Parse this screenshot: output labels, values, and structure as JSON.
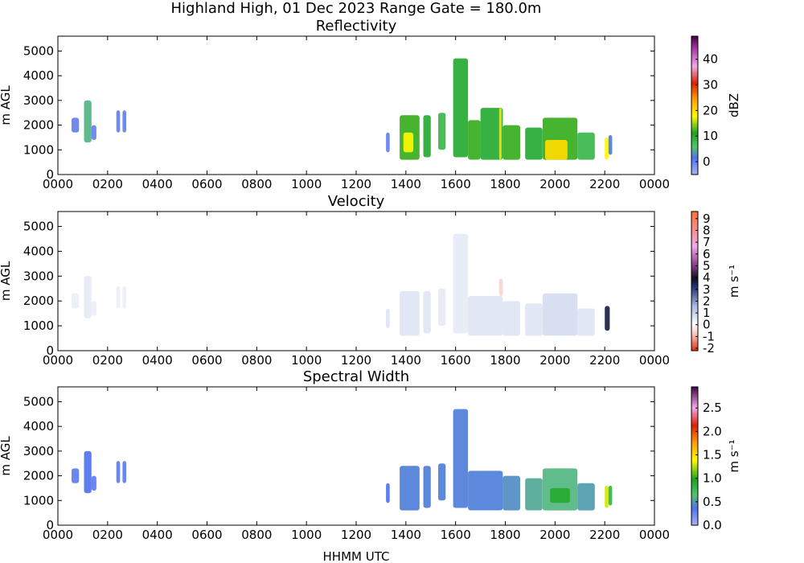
{
  "figure": {
    "title": "Highland High, 01 Dec 2023 Range Gate = 180.0m",
    "xlabel": "HHMM UTC"
  },
  "chart_data": [
    {
      "type": "heatmap",
      "title": "Reflectivity",
      "ylabel": "m AGL",
      "xlim": [
        0,
        24
      ],
      "ylim": [
        0,
        5600
      ],
      "x_ticks": [
        "0000",
        "0200",
        "0400",
        "0600",
        "0800",
        "1000",
        "1200",
        "1400",
        "1600",
        "1800",
        "2000",
        "2200",
        "0000"
      ],
      "y_ticks": [
        0,
        1000,
        2000,
        3000,
        4000,
        5000
      ],
      "colorbar": {
        "label": "dBZ",
        "range": [
          -5,
          49
        ],
        "ticks": [
          "0",
          "10",
          "20",
          "30",
          "40"
        ]
      },
      "cells": [
        {
          "t0": 0.55,
          "t1": 0.85,
          "h0": 1700,
          "h1": 2300,
          "v": 0
        },
        {
          "t0": 1.05,
          "t1": 1.35,
          "h0": 1300,
          "h1": 3000,
          "v": 5
        },
        {
          "t0": 1.35,
          "t1": 1.55,
          "h0": 1400,
          "h1": 2000,
          "v": 0
        },
        {
          "t0": 2.35,
          "t1": 2.5,
          "h0": 1700,
          "h1": 2600,
          "v": 0
        },
        {
          "t0": 2.6,
          "t1": 2.75,
          "h0": 1700,
          "h1": 2600,
          "v": 0
        },
        {
          "t0": 13.2,
          "t1": 13.35,
          "h0": 900,
          "h1": 1700,
          "v": 0
        },
        {
          "t0": 13.75,
          "t1": 14.55,
          "h0": 600,
          "h1": 2400,
          "v": 12
        },
        {
          "t0": 13.9,
          "t1": 14.3,
          "h0": 900,
          "h1": 1700,
          "v": 18
        },
        {
          "t0": 14.7,
          "t1": 15.0,
          "h0": 700,
          "h1": 2400,
          "v": 10
        },
        {
          "t0": 15.3,
          "t1": 15.6,
          "h0": 1000,
          "h1": 2500,
          "v": 8
        },
        {
          "t0": 15.9,
          "t1": 16.5,
          "h0": 700,
          "h1": 4700,
          "v": 10
        },
        {
          "t0": 16.5,
          "t1": 17.0,
          "h0": 600,
          "h1": 2200,
          "v": 12
        },
        {
          "t0": 17.0,
          "t1": 17.9,
          "h0": 600,
          "h1": 2700,
          "v": 10
        },
        {
          "t0": 17.75,
          "t1": 17.85,
          "h0": 600,
          "h1": 2700,
          "v": 20
        },
        {
          "t0": 17.9,
          "t1": 18.6,
          "h0": 600,
          "h1": 2000,
          "v": 12
        },
        {
          "t0": 18.8,
          "t1": 19.5,
          "h0": 600,
          "h1": 1900,
          "v": 10
        },
        {
          "t0": 19.5,
          "t1": 20.9,
          "h0": 600,
          "h1": 2300,
          "v": 12
        },
        {
          "t0": 19.6,
          "t1": 20.5,
          "h0": 600,
          "h1": 1400,
          "v": 20
        },
        {
          "t0": 20.9,
          "t1": 21.6,
          "h0": 600,
          "h1": 1700,
          "v": 8
        },
        {
          "t0": 22.0,
          "t1": 22.15,
          "h0": 600,
          "h1": 1500,
          "v": 18
        },
        {
          "t0": 22.15,
          "t1": 22.3,
          "h0": 800,
          "h1": 1600,
          "v": 2
        }
      ]
    },
    {
      "type": "heatmap",
      "title": "Velocity",
      "ylabel": "m AGL",
      "xlim": [
        0,
        24
      ],
      "ylim": [
        0,
        5600
      ],
      "x_ticks": [
        "0000",
        "0200",
        "0400",
        "0600",
        "0800",
        "1000",
        "1200",
        "1400",
        "1600",
        "1800",
        "2000",
        "2200",
        "0000"
      ],
      "y_ticks": [
        0,
        1000,
        2000,
        3000,
        4000,
        5000
      ],
      "colorbar": {
        "label": "m s⁻¹",
        "range": [
          -2.2,
          9.6
        ],
        "ticks": [
          "-2",
          "-1",
          "0",
          "1",
          "2",
          "3",
          "4",
          "5",
          "6",
          "7",
          "8",
          "9"
        ]
      },
      "cells": [
        {
          "t0": 0.55,
          "t1": 0.85,
          "h0": 1700,
          "h1": 2300,
          "v": 0.4
        },
        {
          "t0": 1.05,
          "t1": 1.35,
          "h0": 1300,
          "h1": 3000,
          "v": 0.5
        },
        {
          "t0": 1.35,
          "t1": 1.55,
          "h0": 1400,
          "h1": 2000,
          "v": 0.4
        },
        {
          "t0": 2.35,
          "t1": 2.5,
          "h0": 1700,
          "h1": 2600,
          "v": 0.4
        },
        {
          "t0": 2.6,
          "t1": 2.75,
          "h0": 1700,
          "h1": 2600,
          "v": 0.4
        },
        {
          "t0": 13.2,
          "t1": 13.35,
          "h0": 900,
          "h1": 1700,
          "v": 0.6
        },
        {
          "t0": 13.75,
          "t1": 14.55,
          "h0": 600,
          "h1": 2400,
          "v": 0.6
        },
        {
          "t0": 14.7,
          "t1": 15.0,
          "h0": 700,
          "h1": 2400,
          "v": 0.6
        },
        {
          "t0": 15.3,
          "t1": 15.6,
          "h0": 1000,
          "h1": 2500,
          "v": 0.5
        },
        {
          "t0": 15.9,
          "t1": 16.5,
          "h0": 700,
          "h1": 4700,
          "v": 0.5
        },
        {
          "t0": 16.5,
          "t1": 17.9,
          "h0": 600,
          "h1": 2200,
          "v": 0.6
        },
        {
          "t0": 17.75,
          "t1": 17.9,
          "h0": 2200,
          "h1": 2900,
          "v": -0.6
        },
        {
          "t0": 17.9,
          "t1": 18.6,
          "h0": 600,
          "h1": 2000,
          "v": 0.6
        },
        {
          "t0": 18.8,
          "t1": 19.5,
          "h0": 600,
          "h1": 1900,
          "v": 0.6
        },
        {
          "t0": 19.5,
          "t1": 20.9,
          "h0": 600,
          "h1": 2300,
          "v": 0.8
        },
        {
          "t0": 20.9,
          "t1": 21.6,
          "h0": 600,
          "h1": 1700,
          "v": 0.6
        },
        {
          "t0": 22.0,
          "t1": 22.2,
          "h0": 800,
          "h1": 1800,
          "v": 3.6
        }
      ]
    },
    {
      "type": "heatmap",
      "title": "Spectral Width",
      "ylabel": "m AGL",
      "xlim": [
        0,
        24
      ],
      "ylim": [
        0,
        5600
      ],
      "x_ticks": [
        "0000",
        "0200",
        "0400",
        "0600",
        "0800",
        "1000",
        "1200",
        "1400",
        "1600",
        "1800",
        "2000",
        "2200",
        "0000"
      ],
      "y_ticks": [
        0,
        1000,
        2000,
        3000,
        4000,
        5000
      ],
      "colorbar": {
        "label": "m s⁻¹",
        "range": [
          0,
          2.95
        ],
        "ticks": [
          "0.0",
          "0.5",
          "1.0",
          "1.5",
          "2.0",
          "2.5"
        ]
      },
      "cells": [
        {
          "t0": 0.55,
          "t1": 0.85,
          "h0": 1700,
          "h1": 2300,
          "v": 0.3
        },
        {
          "t0": 1.05,
          "t1": 1.35,
          "h0": 1300,
          "h1": 3000,
          "v": 0.35
        },
        {
          "t0": 1.35,
          "t1": 1.55,
          "h0": 1400,
          "h1": 2000,
          "v": 0.3
        },
        {
          "t0": 2.35,
          "t1": 2.5,
          "h0": 1700,
          "h1": 2600,
          "v": 0.3
        },
        {
          "t0": 2.6,
          "t1": 2.75,
          "h0": 1700,
          "h1": 2600,
          "v": 0.3
        },
        {
          "t0": 13.2,
          "t1": 13.35,
          "h0": 900,
          "h1": 1700,
          "v": 0.35
        },
        {
          "t0": 13.75,
          "t1": 14.55,
          "h0": 600,
          "h1": 2400,
          "v": 0.4
        },
        {
          "t0": 14.7,
          "t1": 15.0,
          "h0": 700,
          "h1": 2400,
          "v": 0.4
        },
        {
          "t0": 15.3,
          "t1": 15.6,
          "h0": 1000,
          "h1": 2500,
          "v": 0.4
        },
        {
          "t0": 15.9,
          "t1": 16.5,
          "h0": 700,
          "h1": 4700,
          "v": 0.4
        },
        {
          "t0": 16.5,
          "t1": 17.9,
          "h0": 600,
          "h1": 2200,
          "v": 0.4
        },
        {
          "t0": 17.9,
          "t1": 18.6,
          "h0": 600,
          "h1": 2000,
          "v": 0.45
        },
        {
          "t0": 18.8,
          "t1": 19.5,
          "h0": 600,
          "h1": 1900,
          "v": 0.55
        },
        {
          "t0": 19.5,
          "t1": 20.9,
          "h0": 600,
          "h1": 2300,
          "v": 0.6
        },
        {
          "t0": 19.8,
          "t1": 20.6,
          "h0": 900,
          "h1": 1500,
          "v": 0.9
        },
        {
          "t0": 20.9,
          "t1": 21.6,
          "h0": 600,
          "h1": 1700,
          "v": 0.5
        },
        {
          "t0": 22.0,
          "t1": 22.15,
          "h0": 700,
          "h1": 1600,
          "v": 1.3
        },
        {
          "t0": 22.15,
          "t1": 22.3,
          "h0": 800,
          "h1": 1600,
          "v": 0.8
        }
      ]
    }
  ]
}
